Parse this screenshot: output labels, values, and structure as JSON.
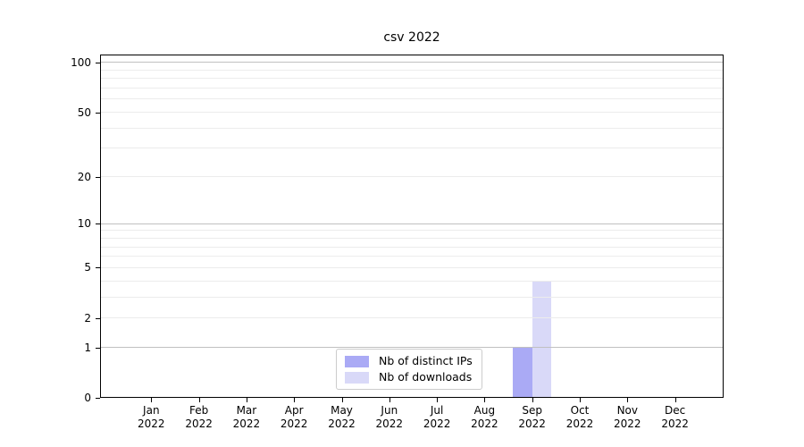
{
  "chart_data": {
    "type": "bar",
    "title": "csv 2022",
    "categories": [
      "Jan",
      "Feb",
      "Mar",
      "Apr",
      "May",
      "Jun",
      "Jul",
      "Aug",
      "Sep",
      "Oct",
      "Nov",
      "Dec"
    ],
    "category_year": "2022",
    "series": [
      {
        "name": "Nb of distinct IPs",
        "color": "#aaaaf5",
        "values": [
          0,
          0,
          0,
          0,
          0,
          0,
          0,
          0,
          1,
          0,
          0,
          0
        ]
      },
      {
        "name": "Nb of downloads",
        "color": "#d9d9f8",
        "values": [
          0,
          0,
          0,
          0,
          0,
          0,
          0,
          0,
          4,
          0,
          0,
          0
        ]
      }
    ],
    "xlabel": "",
    "ylabel": "",
    "yscale": "log1p",
    "ylim": [
      0,
      112
    ],
    "yticks": [
      0,
      1,
      2,
      5,
      10,
      20,
      50,
      100
    ],
    "grid": {
      "major_values": [
        1,
        10,
        100
      ],
      "minor_values": [
        2,
        3,
        4,
        5,
        6,
        7,
        8,
        9,
        20,
        30,
        40,
        50,
        60,
        70,
        80,
        90
      ],
      "major_color": "#c0c0c0",
      "minor_color": "#ececec"
    },
    "legend": {
      "position": "lower center",
      "entries": [
        "Nb of distinct IPs",
        "Nb of downloads"
      ]
    }
  }
}
